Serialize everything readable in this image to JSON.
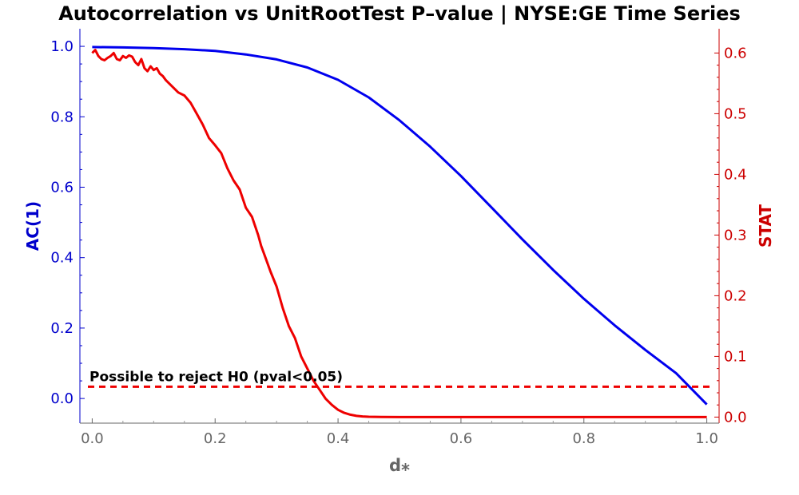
{
  "chart_data": {
    "type": "line",
    "title": "Autocorrelation vs UnitRootTest P–value | NYSE:GE Time Series",
    "xlabel": "d⁎",
    "ylabel_left": "AC(1)",
    "ylabel_right": "STAT",
    "xlim": [
      -0.02,
      1.02
    ],
    "ylim_left": [
      -0.07,
      1.05
    ],
    "ylim_right": [
      -0.01,
      0.64
    ],
    "x_ticks": [
      "0.0",
      "0.2",
      "0.4",
      "0.6",
      "0.8",
      "1.0"
    ],
    "y_left_ticks": [
      "0.0",
      "0.2",
      "0.4",
      "0.6",
      "0.8",
      "1.0"
    ],
    "y_right_ticks": [
      "0.0",
      "0.1",
      "0.2",
      "0.3",
      "0.4",
      "0.5",
      "0.6"
    ],
    "grid": false,
    "legend": "none",
    "series": [
      {
        "axis": "left",
        "color": "#0000ee",
        "x": [
          0.0,
          0.05,
          0.1,
          0.15,
          0.2,
          0.25,
          0.3,
          0.35,
          0.4,
          0.45,
          0.5,
          0.55,
          0.6,
          0.65,
          0.7,
          0.75,
          0.8,
          0.85,
          0.9,
          0.95,
          1.0
        ],
        "y": [
          0.998,
          0.997,
          0.995,
          0.992,
          0.987,
          0.977,
          0.963,
          0.94,
          0.905,
          0.855,
          0.79,
          0.715,
          0.632,
          0.542,
          0.452,
          0.365,
          0.283,
          0.208,
          0.138,
          0.072,
          -0.017
        ]
      },
      {
        "axis": "right",
        "color": "#ee0000",
        "x": [
          0.0,
          0.005,
          0.01,
          0.015,
          0.02,
          0.025,
          0.03,
          0.035,
          0.04,
          0.045,
          0.05,
          0.055,
          0.06,
          0.065,
          0.07,
          0.075,
          0.08,
          0.085,
          0.09,
          0.095,
          0.1,
          0.105,
          0.11,
          0.115,
          0.12,
          0.13,
          0.14,
          0.15,
          0.16,
          0.17,
          0.18,
          0.19,
          0.2,
          0.21,
          0.22,
          0.23,
          0.24,
          0.25,
          0.26,
          0.27,
          0.275,
          0.28,
          0.29,
          0.3,
          0.31,
          0.32,
          0.33,
          0.34,
          0.35,
          0.36,
          0.37,
          0.38,
          0.39,
          0.4,
          0.41,
          0.42,
          0.43,
          0.44,
          0.45,
          0.47,
          0.5,
          0.6,
          0.7,
          0.8,
          0.9,
          1.0
        ],
        "y": [
          0.6,
          0.605,
          0.595,
          0.59,
          0.588,
          0.592,
          0.595,
          0.6,
          0.59,
          0.588,
          0.595,
          0.592,
          0.596,
          0.594,
          0.585,
          0.58,
          0.59,
          0.575,
          0.57,
          0.578,
          0.572,
          0.575,
          0.566,
          0.562,
          0.555,
          0.545,
          0.535,
          0.53,
          0.518,
          0.5,
          0.482,
          0.46,
          0.448,
          0.435,
          0.41,
          0.39,
          0.375,
          0.345,
          0.33,
          0.3,
          0.282,
          0.268,
          0.24,
          0.215,
          0.18,
          0.15,
          0.13,
          0.1,
          0.08,
          0.06,
          0.045,
          0.03,
          0.02,
          0.012,
          0.007,
          0.004,
          0.002,
          0.001,
          0.0005,
          0.0002,
          0.0,
          0.0,
          0.0,
          0.0,
          0.0,
          0.0
        ]
      }
    ],
    "threshold": {
      "axis": "right",
      "value": 0.05,
      "color": "#ee0000",
      "style": "dashed",
      "label": "Possible to reject H0 (pval<0.05)"
    }
  }
}
